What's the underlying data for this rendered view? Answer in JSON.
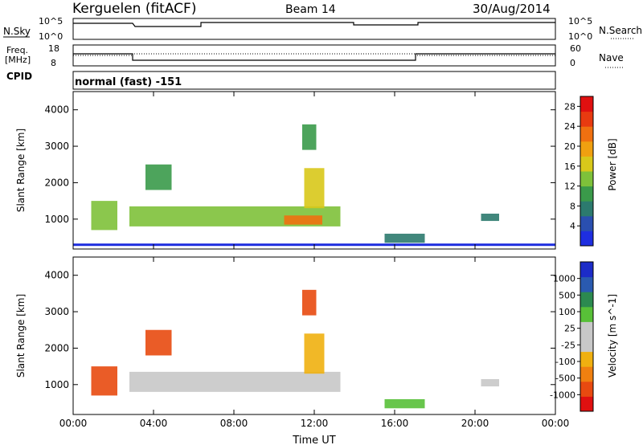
{
  "header": {
    "station": "Kerguelen (fitACF)",
    "beam": "Beam 14",
    "date": "30/Aug/2014"
  },
  "noise_panel": {
    "left_label": "N.Sky",
    "left_ticks": [
      "10^5",
      "10^0"
    ],
    "right_ticks": [
      "10^5",
      "10^0"
    ],
    "right_label": "N.Search"
  },
  "freq_panel": {
    "left_label_line1": "Freq.",
    "left_label_line2": "[MHz]",
    "left_ticks": [
      "18",
      "8"
    ],
    "right_ticks": [
      "60",
      "0"
    ],
    "right_label": "Nave"
  },
  "cpid": {
    "label": "CPID",
    "value": "normal (fast) -151"
  },
  "colors": {
    "power_scale": [
      "#1e2ee0",
      "#2a4fb0",
      "#2c7a6e",
      "#3a9a4a",
      "#7ec13a",
      "#d8c81a",
      "#f0a010",
      "#f07010",
      "#e83a10",
      "#e01010"
    ],
    "velocity_scale": [
      "#1c2cc8",
      "#2a5ab0",
      "#2c8a50",
      "#58c038",
      "#c8c8c8",
      "#c8c8c8",
      "#f0b010",
      "#f08010",
      "#e84a10",
      "#e01010"
    ]
  },
  "chart_data": [
    {
      "type": "heatmap",
      "title": "Power",
      "ylabel": "Slant Range [km]",
      "xlabel": "Time UT",
      "x_ticks": [
        "00:00",
        "04:00",
        "08:00",
        "12:00",
        "16:00",
        "20:00",
        "00:00"
      ],
      "y_ticks": [
        "1000",
        "2000",
        "3000",
        "4000"
      ],
      "ylim": [
        180,
        4500
      ],
      "xlim_hours": [
        0,
        24
      ],
      "colorbar": {
        "label": "Power [dB]",
        "ticks": [
          "4",
          "8",
          "12",
          "16",
          "20",
          "24",
          "28"
        ],
        "range": [
          0,
          30
        ]
      },
      "echo_regions": [
        {
          "t_start": 0.9,
          "t_end": 2.2,
          "r_low": 700,
          "r_high": 1500,
          "value": 12
        },
        {
          "t_start": 2.8,
          "t_end": 13.3,
          "r_low": 800,
          "r_high": 1350,
          "value": 14
        },
        {
          "t_start": 10.5,
          "t_end": 12.4,
          "r_low": 850,
          "r_high": 1100,
          "value": 22
        },
        {
          "t_start": 3.6,
          "t_end": 4.9,
          "r_low": 1800,
          "r_high": 2500,
          "value": 10
        },
        {
          "t_start": 11.4,
          "t_end": 12.1,
          "r_low": 2900,
          "r_high": 3600,
          "value": 10
        },
        {
          "t_start": 11.5,
          "t_end": 12.5,
          "r_low": 1300,
          "r_high": 2400,
          "value": 15
        },
        {
          "t_start": 15.5,
          "t_end": 17.5,
          "r_low": 350,
          "r_high": 600,
          "value": 8
        },
        {
          "t_start": 20.3,
          "t_end": 21.2,
          "r_low": 950,
          "r_high": 1150,
          "value": 8
        }
      ]
    },
    {
      "type": "heatmap",
      "title": "Velocity",
      "ylabel": "Slant Range [km]",
      "xlabel": "Time UT",
      "x_ticks": [
        "00:00",
        "04:00",
        "08:00",
        "12:00",
        "16:00",
        "20:00",
        "00:00"
      ],
      "y_ticks": [
        "1000",
        "2000",
        "3000",
        "4000"
      ],
      "ylim": [
        180,
        4500
      ],
      "xlim_hours": [
        0,
        24
      ],
      "colorbar": {
        "label": "Velocity [m s^-1]",
        "ticks": [
          "1000",
          "500",
          "100",
          "25",
          "-25",
          "-100",
          "-500",
          "-1000"
        ]
      },
      "echo_regions": [
        {
          "t_start": 0.9,
          "t_end": 2.2,
          "r_low": 700,
          "r_high": 1500,
          "value": -300
        },
        {
          "t_start": 2.8,
          "t_end": 13.3,
          "r_low": 800,
          "r_high": 1350,
          "value": 0
        },
        {
          "t_start": 3.6,
          "t_end": 4.9,
          "r_low": 1800,
          "r_high": 2500,
          "value": -300
        },
        {
          "t_start": 11.4,
          "t_end": 12.1,
          "r_low": 2900,
          "r_high": 3600,
          "value": -300
        },
        {
          "t_start": 11.5,
          "t_end": 12.5,
          "r_low": 1300,
          "r_high": 2400,
          "value": -100
        },
        {
          "t_start": 15.5,
          "t_end": 17.5,
          "r_low": 350,
          "r_high": 600,
          "value": 100
        },
        {
          "t_start": 20.3,
          "t_end": 21.2,
          "r_low": 950,
          "r_high": 1150,
          "value": 0
        }
      ]
    }
  ]
}
